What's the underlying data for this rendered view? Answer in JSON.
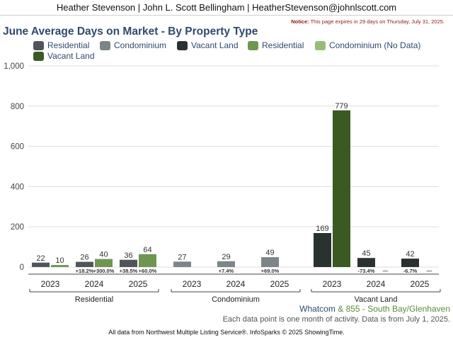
{
  "header": {
    "agent_line": "Heather Stevenson | John L. Scott Bellingham | HeatherStevenson@johnlscott.com"
  },
  "notice": {
    "label": "Notice:",
    "text": "This page expires in 29 days on Thursday, July 31, 2025."
  },
  "colors": {
    "res_prev": "#50575a",
    "res_curr": "#6e9650",
    "condo_prev": "#7c8587",
    "condo_curr": "#98bb78",
    "vacant_prev": "#2a3230",
    "vacant_curr": "#3a5a22",
    "title": "#2f4a6d"
  },
  "legend": [
    {
      "label": "Residential",
      "color": "#50575a"
    },
    {
      "label": "Condominium",
      "color": "#7c8587"
    },
    {
      "label": "Vacant Land",
      "color": "#2a3230"
    },
    {
      "label": "Residential",
      "color": "#6e9650"
    },
    {
      "label": "Condominium (No Data)",
      "color": "#98bb78"
    },
    {
      "label": "Vacant Land",
      "color": "#3a5a22"
    }
  ],
  "chart_data": {
    "type": "bar",
    "title": "June Average Days on Market - By Property Type",
    "ylim": [
      0,
      1000
    ],
    "yticks": [
      "0",
      "200",
      "400",
      "600",
      "800",
      "1,000"
    ],
    "ytick_values": [
      0,
      200,
      400,
      600,
      800,
      1000
    ],
    "groups": [
      {
        "name": "Residential",
        "years": [
          {
            "year": "2023",
            "prev": 22,
            "curr": 10,
            "prev_label": "22",
            "curr_label": "10",
            "prev_change": "",
            "curr_change": ""
          },
          {
            "year": "2024",
            "prev": 26,
            "curr": 40,
            "prev_label": "26",
            "curr_label": "40",
            "prev_change": "+18.2%",
            "curr_change": "+300.0%"
          },
          {
            "year": "2025",
            "prev": 36,
            "curr": 64,
            "prev_label": "36",
            "curr_label": "64",
            "prev_change": "+38.5%",
            "curr_change": "+60.0%"
          }
        ]
      },
      {
        "name": "Condominium",
        "years": [
          {
            "year": "2023",
            "prev": 27,
            "curr": null,
            "prev_label": "27",
            "curr_label": "",
            "prev_change": "",
            "curr_change": ""
          },
          {
            "year": "2024",
            "prev": 29,
            "curr": null,
            "prev_label": "29",
            "curr_label": "",
            "prev_change": "+7.4%",
            "curr_change": ""
          },
          {
            "year": "2025",
            "prev": 49,
            "curr": null,
            "prev_label": "49",
            "curr_label": "",
            "prev_change": "+69.0%",
            "curr_change": ""
          }
        ]
      },
      {
        "name": "Vacant Land",
        "years": [
          {
            "year": "2023",
            "prev": 169,
            "curr": 779,
            "prev_label": "169",
            "curr_label": "779",
            "prev_change": "",
            "curr_change": ""
          },
          {
            "year": "2024",
            "prev": 45,
            "curr": null,
            "prev_label": "45",
            "curr_label": "",
            "prev_change": "-73.4%",
            "curr_change": "—"
          },
          {
            "year": "2025",
            "prev": 42,
            "curr": null,
            "prev_label": "42",
            "curr_label": "",
            "prev_change": "-6.7%",
            "curr_change": "—"
          }
        ]
      }
    ],
    "grid": true,
    "legend_position": "top"
  },
  "footer": {
    "area_part1": "Whatcom",
    "area_amp": "&",
    "area_part2": "855 - South Bay/Glenhaven",
    "note": "Each data point is one month of activity. Data is from July 1, 2025.",
    "source": "All data from Northwest Multiple Listing Service®. InfoSparks © 2025 ShowingTime."
  }
}
